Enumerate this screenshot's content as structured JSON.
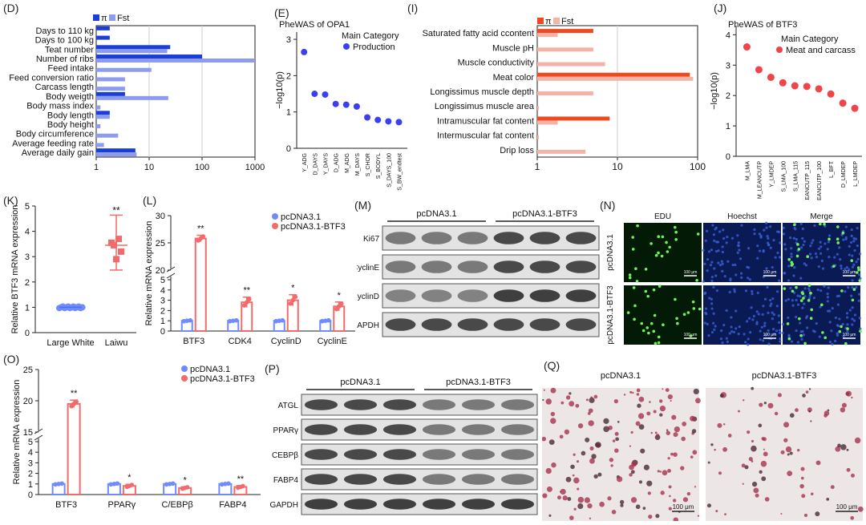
{
  "panels": {
    "D": "(D)",
    "E": "(E)",
    "I": "(I)",
    "J": "(J)",
    "K": "(K)",
    "L": "(L)",
    "M": "(M)",
    "N": "(N)",
    "O": "(O)",
    "P": "(P)",
    "Q": "(Q)"
  },
  "colors": {
    "pi_blue": "#1a3fd6",
    "fst_blue": "#8e9cf0",
    "pi_red": "#ef4a1f",
    "fst_red": "#f5b3a8",
    "dot_blue": "#3b3ff0",
    "dot_red": "#f0444a",
    "ctrl": "#6f8bff",
    "treat": "#f26b6b"
  },
  "chart_d": {
    "legend": [
      "π",
      "Fst"
    ],
    "traits": [
      "Days to 110 kg",
      "Days to 100 kg",
      "Teat number",
      "Number of ribs",
      "Feed intake",
      "Feed conversion ratio",
      "Carcass length",
      "Body weigth",
      "Body mass index",
      "Body length",
      "Body height",
      "Body circumference",
      "Average feeding rate",
      "Average daily gain"
    ],
    "pi": [
      1.8,
      1.8,
      25,
      100,
      1,
      1,
      1,
      3.5,
      1,
      1.8,
      1,
      1,
      1,
      5.5
    ],
    "fst": [
      1,
      1,
      22,
      1000,
      11,
      3.5,
      3.5,
      23,
      1.2,
      1.8,
      1.2,
      2.6,
      1.4,
      5.8
    ],
    "xticks": [
      "1",
      "10",
      "100",
      "1000"
    ]
  },
  "chart_e": {
    "title": "PheWAS of OPA1",
    "legend_title": "Main Category",
    "legend_item": "Production",
    "ylabel": "−log10(p)",
    "yticks": [
      "0",
      "1",
      "2",
      "3"
    ],
    "traits": [
      "Y_ADG",
      "D_DAYS",
      "Y_DAYS",
      "D_ADG",
      "M_ADG",
      "M_DAYS",
      "S_CHOR",
      "S_BODYL",
      "S_DAYS_100",
      "S_BW_endtest"
    ],
    "values": [
      2.65,
      1.5,
      1.48,
      1.22,
      1.2,
      1.15,
      0.85,
      0.78,
      0.74,
      0.72
    ]
  },
  "chart_i": {
    "legend": [
      "π",
      "Fst"
    ],
    "traits": [
      "Saturated fatty acid ccontent",
      "Muscle pH",
      "Muscle conductivity",
      "Meat color",
      "Longissimus muscle depth",
      "Longissimus muscle area",
      "Intramuscular fat content",
      "Intermuscular fat content",
      "Drip loss"
    ],
    "pi": [
      5,
      1,
      1,
      80,
      1,
      1,
      8,
      1,
      1
    ],
    "fst": [
      1.8,
      5,
      7,
      88,
      5,
      1.05,
      1.8,
      1.05,
      4
    ],
    "xticks": [
      "1",
      "10",
      "100"
    ]
  },
  "chart_j": {
    "title": "PheWAS of BTF3",
    "legend_title": "Main Category",
    "legend_item": "Meat and carcass",
    "ylabel": "−log10(p)",
    "yticks": [
      "0",
      "1",
      "2",
      "3",
      "4"
    ],
    "traits": [
      "M_LMA",
      "M_LEANCUTP",
      "Y_LMDEP",
      "S_LMA_100",
      "S_LMA_115",
      "S_LEANCUTP_115",
      "S_LEANCUTP_100",
      "L_BFT",
      "D_LMDEP",
      "L_LMDEP"
    ],
    "values": [
      3.6,
      2.85,
      2.6,
      2.42,
      2.32,
      2.3,
      2.22,
      2.05,
      1.75,
      1.58
    ]
  },
  "chart_k": {
    "ylabel": "Relative BTF3 mRNA expression",
    "categories": [
      "Large White",
      "Laiwu"
    ],
    "means": [
      1.0,
      3.45
    ],
    "errors": [
      0.06,
      0.7
    ],
    "yticks": [
      "0",
      "1",
      "2",
      "3",
      "4",
      "5"
    ],
    "sig": "**"
  },
  "chart_l": {
    "ylabel": "Relative mRNA expression",
    "legend": [
      "pcDNA3.1",
      "pcDNA3.1-BTF3"
    ],
    "categories": [
      "BTF3",
      "CDK4",
      "CyclinD",
      "CyclinE"
    ],
    "ctrl": [
      1.0,
      1.0,
      1.0,
      1.0
    ],
    "treat": [
      25.8,
      2.8,
      3.0,
      2.4
    ],
    "sig": [
      "**",
      "**",
      "*",
      "*"
    ],
    "yticks_low": [
      "0",
      "1",
      "2",
      "3",
      "4",
      "5"
    ],
    "yticks_high": [
      "20",
      "25",
      "30"
    ]
  },
  "chart_o": {
    "ylabel": "Relative mRNA expression",
    "legend": [
      "pcDNA3.1",
      "pcDNA3.1-BTF3"
    ],
    "categories": [
      "BTF3",
      "PPARγ",
      "C/EBPβ",
      "FABP4"
    ],
    "ctrl": [
      1.0,
      1.0,
      1.0,
      1.0
    ],
    "treat": [
      19.5,
      0.82,
      0.62,
      0.72
    ],
    "sig": [
      "**",
      "*",
      "*",
      "**"
    ],
    "yticks_low": [
      "0",
      "1",
      "2",
      "3",
      "4",
      "5"
    ],
    "yticks_high": [
      "15",
      "20",
      "25"
    ]
  },
  "blot_m": {
    "groups": [
      "pcDNA3.1",
      "pcDNA3.1-BTF3"
    ],
    "bands": [
      "Ki67",
      "CyclinE",
      "CyclinD",
      "GAPDH"
    ]
  },
  "panel_n": {
    "cols": [
      "EDU",
      "Hoechst",
      "Merge"
    ],
    "rows": [
      "pcDNA3.1",
      "pcDNA3.1-BTF3"
    ],
    "scale": "100 μm"
  },
  "blot_p": {
    "groups": [
      "pcDNA3.1",
      "pcDNA3.1-BTF3"
    ],
    "bands": [
      "ATGL",
      "PPARγ",
      "CEBPβ",
      "FABP4",
      "GAPDH"
    ]
  },
  "panel_q": {
    "cols": [
      "pcDNA3.1",
      "pcDNA3.1-BTF3"
    ],
    "scale": "100 μm"
  }
}
